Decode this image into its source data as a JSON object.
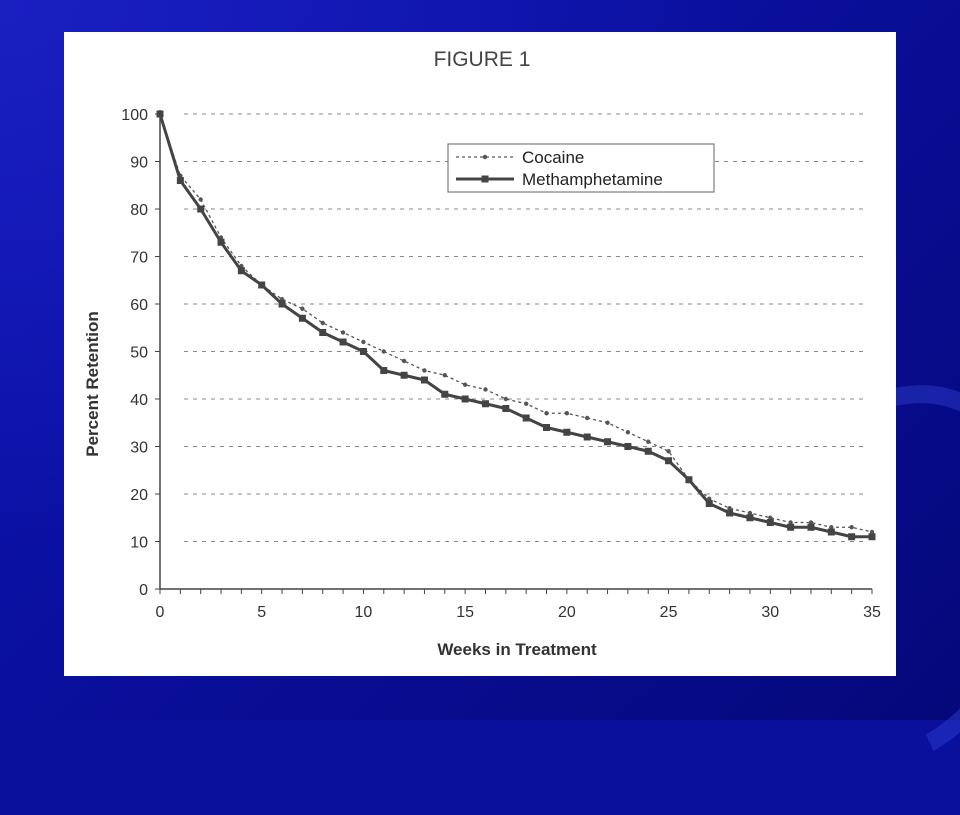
{
  "slide": {
    "background_color": "#0a0f9c",
    "panel_color": "#ffffff"
  },
  "chart_data": {
    "type": "line",
    "title": "FIGURE 1",
    "xlabel": "Weeks in Treatment",
    "ylabel": "Percent Retention",
    "xlim": [
      0,
      35
    ],
    "ylim": [
      0,
      100
    ],
    "x_ticks": [
      0,
      5,
      10,
      15,
      20,
      25,
      30,
      35
    ],
    "y_ticks": [
      0,
      10,
      20,
      30,
      40,
      50,
      60,
      70,
      80,
      90,
      100
    ],
    "grid": "horizontal dashed",
    "legend_position": "top-right",
    "x": [
      0,
      1,
      2,
      3,
      4,
      5,
      6,
      7,
      8,
      9,
      10,
      11,
      12,
      13,
      14,
      15,
      16,
      17,
      18,
      19,
      20,
      21,
      22,
      23,
      24,
      25,
      26,
      27,
      28,
      29,
      30,
      31,
      32,
      33,
      34,
      35
    ],
    "series": [
      {
        "name": "Cocaine",
        "style": "dotted",
        "color": "#555555",
        "values": [
          100,
          87,
          82,
          74,
          68,
          64,
          61,
          59,
          56,
          54,
          52,
          50,
          48,
          46,
          45,
          43,
          42,
          40,
          39,
          37,
          37,
          36,
          35,
          33,
          31,
          29,
          23,
          19,
          17,
          16,
          15,
          14,
          14,
          13,
          13,
          12
        ]
      },
      {
        "name": "Methamphetamine",
        "style": "solid",
        "color": "#444444",
        "values": [
          100,
          86,
          80,
          73,
          67,
          64,
          60,
          57,
          54,
          52,
          50,
          46,
          45,
          44,
          41,
          40,
          39,
          38,
          36,
          34,
          33,
          32,
          31,
          30,
          29,
          27,
          23,
          18,
          16,
          15,
          14,
          13,
          13,
          12,
          11,
          11
        ]
      }
    ]
  }
}
